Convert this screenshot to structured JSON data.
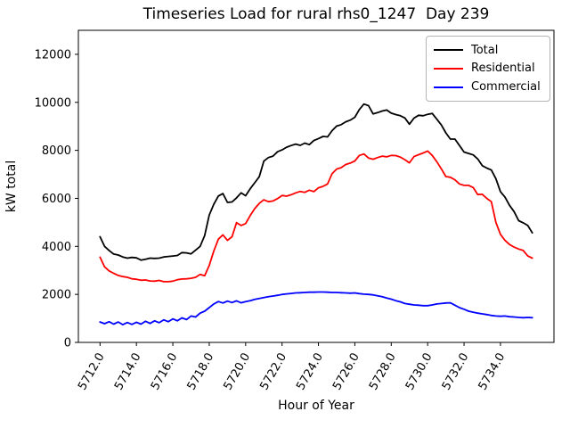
{
  "figure": {
    "title": "Timeseries Load for rural rhs0_1247  Day 239"
  },
  "chart_data": {
    "type": "line",
    "title": "Timeseries Load for rural rhs0_1247  Day 239",
    "xlabel": "Hour of Year",
    "ylabel": "kW total",
    "xlim": [
      5710.81,
      5736.94
    ],
    "ylim": [
      0,
      13000
    ],
    "grid": false,
    "xticks": [
      5712,
      5714,
      5716,
      5718,
      5720,
      5722,
      5724,
      5726,
      5728,
      5730,
      5732,
      5734
    ],
    "xticklabels": [
      "5712.0",
      "5714.0",
      "5716.0",
      "5718.0",
      "5720.0",
      "5722.0",
      "5724.0",
      "5726.0",
      "5728.0",
      "5730.0",
      "5732.0",
      "5734.0"
    ],
    "yticks": [
      0,
      2000,
      4000,
      6000,
      8000,
      10000,
      12000
    ],
    "legend": {
      "position": "upper right",
      "entries": [
        "Total",
        "Residential",
        "Commercial"
      ]
    },
    "x": [
      5712.0,
      5712.25,
      5712.5,
      5712.75,
      5713.0,
      5713.25,
      5713.5,
      5713.75,
      5714.0,
      5714.25,
      5714.5,
      5714.75,
      5715.0,
      5715.25,
      5715.5,
      5715.75,
      5716.0,
      5716.25,
      5716.5,
      5716.75,
      5717.0,
      5717.25,
      5717.5,
      5717.75,
      5718.0,
      5718.25,
      5718.5,
      5718.75,
      5719.0,
      5719.25,
      5719.5,
      5719.75,
      5720.0,
      5720.25,
      5720.5,
      5720.75,
      5721.0,
      5721.25,
      5721.5,
      5721.75,
      5722.0,
      5722.25,
      5722.5,
      5722.75,
      5723.0,
      5723.25,
      5723.5,
      5723.75,
      5724.0,
      5724.25,
      5724.5,
      5724.75,
      5725.0,
      5725.25,
      5725.5,
      5725.75,
      5726.0,
      5726.25,
      5726.5,
      5726.75,
      5727.0,
      5727.25,
      5727.5,
      5727.75,
      5728.0,
      5728.25,
      5728.5,
      5728.75,
      5729.0,
      5729.25,
      5729.5,
      5729.75,
      5730.0,
      5730.25,
      5730.5,
      5730.75,
      5731.0,
      5731.25,
      5731.5,
      5731.75,
      5732.0,
      5732.25,
      5732.5,
      5732.75,
      5733.0,
      5733.25,
      5733.5,
      5733.75,
      5734.0,
      5734.25,
      5734.5,
      5734.75,
      5735.0,
      5735.25,
      5735.5,
      5735.75
    ],
    "series": [
      {
        "name": "Total",
        "color": "#000000",
        "values": [
          4400,
          4000,
          3830,
          3680,
          3640,
          3560,
          3510,
          3540,
          3520,
          3430,
          3460,
          3510,
          3500,
          3510,
          3560,
          3580,
          3600,
          3620,
          3740,
          3730,
          3690,
          3840,
          4000,
          4450,
          5300,
          5750,
          6100,
          6200,
          5830,
          5850,
          6020,
          6230,
          6110,
          6400,
          6650,
          6900,
          7550,
          7700,
          7760,
          7940,
          8020,
          8130,
          8200,
          8260,
          8210,
          8300,
          8240,
          8410,
          8490,
          8580,
          8560,
          8820,
          9010,
          9070,
          9190,
          9260,
          9380,
          9700,
          9930,
          9860,
          9520,
          9570,
          9640,
          9680,
          9550,
          9490,
          9440,
          9350,
          9090,
          9340,
          9460,
          9440,
          9500,
          9540,
          9300,
          9060,
          8730,
          8470,
          8470,
          8200,
          7930,
          7870,
          7810,
          7640,
          7360,
          7260,
          7180,
          6820,
          6280,
          6050,
          5710,
          5450,
          5070,
          4980,
          4870,
          4560
        ]
      },
      {
        "name": "Residential",
        "color": "#ff0000",
        "values": [
          3550,
          3150,
          2980,
          2880,
          2790,
          2740,
          2710,
          2650,
          2630,
          2590,
          2600,
          2560,
          2550,
          2580,
          2530,
          2530,
          2550,
          2610,
          2640,
          2650,
          2670,
          2710,
          2830,
          2780,
          3200,
          3800,
          4300,
          4480,
          4250,
          4400,
          4990,
          4870,
          4950,
          5280,
          5570,
          5790,
          5940,
          5860,
          5890,
          5990,
          6120,
          6090,
          6150,
          6230,
          6290,
          6250,
          6340,
          6280,
          6440,
          6500,
          6600,
          7030,
          7220,
          7280,
          7410,
          7470,
          7560,
          7790,
          7850,
          7680,
          7630,
          7700,
          7760,
          7730,
          7790,
          7780,
          7720,
          7610,
          7480,
          7740,
          7820,
          7890,
          7970,
          7790,
          7530,
          7230,
          6910,
          6880,
          6770,
          6600,
          6540,
          6540,
          6450,
          6160,
          6170,
          6000,
          5860,
          5000,
          4500,
          4250,
          4080,
          3970,
          3890,
          3830,
          3600,
          3510
        ]
      },
      {
        "name": "Commercial",
        "color": "#0000ff",
        "values": [
          850,
          780,
          860,
          760,
          850,
          740,
          830,
          750,
          840,
          760,
          880,
          790,
          900,
          820,
          940,
          860,
          980,
          900,
          1020,
          950,
          1100,
          1060,
          1220,
          1300,
          1450,
          1600,
          1700,
          1640,
          1720,
          1660,
          1730,
          1650,
          1700,
          1740,
          1790,
          1830,
          1870,
          1900,
          1930,
          1960,
          2000,
          2020,
          2040,
          2060,
          2070,
          2080,
          2090,
          2090,
          2100,
          2100,
          2090,
          2080,
          2080,
          2070,
          2060,
          2050,
          2060,
          2030,
          2010,
          2000,
          1980,
          1940,
          1900,
          1850,
          1800,
          1740,
          1690,
          1620,
          1590,
          1560,
          1550,
          1530,
          1530,
          1560,
          1600,
          1620,
          1640,
          1650,
          1550,
          1450,
          1380,
          1300,
          1260,
          1220,
          1190,
          1160,
          1120,
          1100,
          1090,
          1100,
          1070,
          1060,
          1040,
          1030,
          1040,
          1030
        ]
      }
    ]
  }
}
